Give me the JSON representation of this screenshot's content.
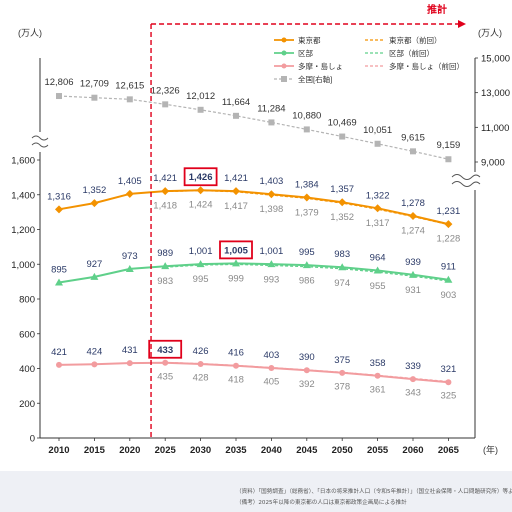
{
  "chart_data": {
    "type": "line",
    "units": {
      "left": "(万人)",
      "right": "(万人)",
      "x": "(年)"
    },
    "projection_label": "推計",
    "x": [
      "2010",
      "2015",
      "2020",
      "2025",
      "2030",
      "2035",
      "2040",
      "2045",
      "2050",
      "2055",
      "2060",
      "2065"
    ],
    "left_axis": {
      "ticks": [
        "0",
        "200",
        "400",
        "600",
        "800",
        "1,000",
        "1,200",
        "1,400",
        "1,600"
      ],
      "ylim": [
        0,
        1600
      ]
    },
    "right_axis": {
      "ticks": [
        "9,000",
        "11,000",
        "13,000",
        "15,000"
      ],
      "ylim": [
        9000,
        15000
      ]
    },
    "series": [
      {
        "name": "東京都",
        "color": "#f39200",
        "style": "solid",
        "axis": "left",
        "values": [
          1316,
          1352,
          1405,
          1421,
          1426,
          1421,
          1403,
          1384,
          1357,
          1322,
          1278,
          1231
        ],
        "labels": [
          "1,316",
          "1,352",
          "1,405",
          "1,421",
          "1,426",
          "1,421",
          "1,403",
          "1,384",
          "1,357",
          "1,322",
          "1,278",
          "1,231"
        ]
      },
      {
        "name": "東京都（前回）",
        "color": "#f39200",
        "style": "dashed",
        "axis": "left",
        "values": [
          null,
          null,
          null,
          1418,
          1424,
          1417,
          1398,
          1379,
          1352,
          1317,
          1274,
          1228
        ],
        "labels": [
          "",
          "",
          "",
          "1,418",
          "1,424",
          "1,417",
          "1,398",
          "1,379",
          "1,352",
          "1,317",
          "1,274",
          "1,228"
        ]
      },
      {
        "name": "区部",
        "color": "#5fd08a",
        "style": "solid",
        "axis": "left",
        "values": [
          895,
          927,
          973,
          989,
          1001,
          1005,
          1001,
          995,
          983,
          964,
          939,
          911
        ],
        "labels": [
          "895",
          "927",
          "973",
          "989",
          "1,001",
          "1,005",
          "1,001",
          "995",
          "983",
          "964",
          "939",
          "911"
        ]
      },
      {
        "name": "区部（前回）",
        "color": "#5fd08a",
        "style": "dashed",
        "axis": "left",
        "values": [
          null,
          null,
          null,
          983,
          995,
          999,
          993,
          986,
          974,
          955,
          931,
          903
        ],
        "labels": [
          "",
          "",
          "",
          "983",
          "995",
          "999",
          "993",
          "986",
          "974",
          "955",
          "931",
          "903"
        ]
      },
      {
        "name": "多摩・島しょ",
        "color": "#f29c9f",
        "style": "solid",
        "axis": "left",
        "values": [
          421,
          424,
          431,
          433,
          426,
          416,
          403,
          390,
          375,
          358,
          339,
          321
        ],
        "labels": [
          "421",
          "424",
          "431",
          "433",
          "426",
          "416",
          "403",
          "390",
          "375",
          "358",
          "339",
          "321"
        ]
      },
      {
        "name": "多摩・島しょ（前回）",
        "color": "#f29c9f",
        "style": "dashed",
        "axis": "left",
        "values": [
          null,
          null,
          null,
          435,
          428,
          418,
          405,
          392,
          378,
          361,
          343,
          325
        ],
        "labels": [
          "",
          "",
          "",
          "435",
          "428",
          "418",
          "405",
          "392",
          "378",
          "361",
          "343",
          "325"
        ]
      },
      {
        "name": "全国[右軸]",
        "color": "#b4b4b4",
        "style": "dashed",
        "axis": "right",
        "values": [
          12806,
          12709,
          12615,
          12326,
          12012,
          11664,
          11284,
          10880,
          10469,
          10051,
          9615,
          9159
        ],
        "labels": [
          "12,806",
          "12,709",
          "12,615",
          "12,326",
          "12,012",
          "11,664",
          "11,284",
          "10,880",
          "10,469",
          "10,051",
          "9,615",
          "9,159"
        ]
      }
    ],
    "highlighted_peaks": [
      "1,426",
      "1,005",
      "433"
    ],
    "grid": false,
    "legend": "top-right"
  },
  "footnotes": {
    "source": "（資料）「国勢調査」（総務省）、「日本の将来推計人口（令和5年推計）」（国立社会保障・人口問題研究所）等より作成",
    "note": "（備考）2025年以降の東京都の人口は東京都政策企画局による推計"
  }
}
